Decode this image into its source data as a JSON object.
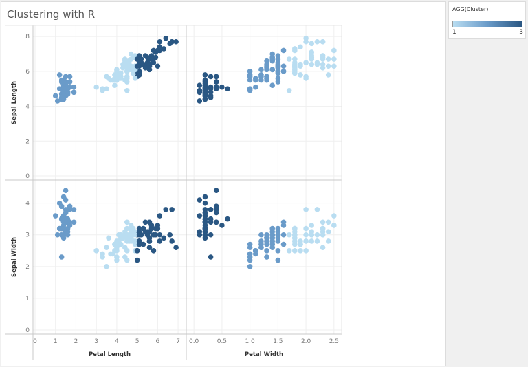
{
  "title": "Clustering with R",
  "legend": {
    "title": "AGG(Cluster)",
    "min_label": "1",
    "max_label": "3",
    "color_low": "#b9ddf1",
    "color_mid": "#6a9bc9",
    "color_high": "#2a5783"
  },
  "chart_data": {
    "type": "scatter",
    "layout": "2x2 scatter matrix",
    "grid": true,
    "color_field": "AGG(Cluster)",
    "legend_position": "top-right",
    "rows": [
      {
        "label": "Sepal Length",
        "ylim": [
          0,
          8.4
        ],
        "ticks": [
          "0",
          "2",
          "4",
          "6",
          "8"
        ]
      },
      {
        "label": "Sepal Width",
        "ylim": [
          0,
          4.6
        ],
        "ticks": [
          "0",
          "1",
          "2",
          "3",
          "4"
        ]
      }
    ],
    "columns": [
      {
        "label": "Petal Length",
        "xlim": [
          0,
          7.3
        ],
        "ticks": [
          "0",
          "1",
          "2",
          "3",
          "4",
          "5",
          "6",
          "7"
        ]
      },
      {
        "label": "Petal Width",
        "xlim": [
          -0.1,
          2.6
        ],
        "ticks": [
          "0.0",
          "0.5",
          "1.0",
          "1.5",
          "2.0",
          "2.5"
        ]
      }
    ],
    "point_fields": [
      "sepal_length",
      "sepal_width",
      "petal_length",
      "petal_width",
      "cluster_in_petal_length_column",
      "cluster_in_petal_width_column"
    ],
    "points": [
      [
        5.1,
        3.5,
        1.4,
        0.2,
        2,
        3
      ],
      [
        4.9,
        3.0,
        1.4,
        0.2,
        2,
        3
      ],
      [
        4.7,
        3.2,
        1.3,
        0.2,
        2,
        3
      ],
      [
        4.6,
        3.1,
        1.5,
        0.2,
        2,
        3
      ],
      [
        5.0,
        3.6,
        1.4,
        0.2,
        2,
        3
      ],
      [
        5.4,
        3.9,
        1.7,
        0.4,
        2,
        3
      ],
      [
        4.6,
        3.4,
        1.4,
        0.3,
        2,
        3
      ],
      [
        5.0,
        3.4,
        1.5,
        0.2,
        2,
        3
      ],
      [
        4.4,
        2.9,
        1.4,
        0.2,
        2,
        3
      ],
      [
        4.9,
        3.1,
        1.5,
        0.1,
        2,
        3
      ],
      [
        5.4,
        3.7,
        1.5,
        0.2,
        2,
        3
      ],
      [
        4.8,
        3.4,
        1.6,
        0.2,
        2,
        3
      ],
      [
        4.8,
        3.0,
        1.4,
        0.1,
        2,
        3
      ],
      [
        4.3,
        3.0,
        1.1,
        0.1,
        2,
        3
      ],
      [
        5.8,
        4.0,
        1.2,
        0.2,
        2,
        3
      ],
      [
        5.7,
        4.4,
        1.5,
        0.4,
        2,
        3
      ],
      [
        5.4,
        3.9,
        1.3,
        0.4,
        2,
        3
      ],
      [
        5.1,
        3.5,
        1.4,
        0.3,
        2,
        3
      ],
      [
        5.7,
        3.8,
        1.7,
        0.3,
        2,
        3
      ],
      [
        5.1,
        3.8,
        1.5,
        0.3,
        2,
        3
      ],
      [
        5.4,
        3.4,
        1.7,
        0.2,
        2,
        3
      ],
      [
        5.1,
        3.7,
        1.5,
        0.4,
        2,
        3
      ],
      [
        4.6,
        3.6,
        1.0,
        0.2,
        2,
        3
      ],
      [
        5.1,
        3.3,
        1.7,
        0.5,
        2,
        3
      ],
      [
        4.8,
        3.4,
        1.9,
        0.2,
        2,
        3
      ],
      [
        5.0,
        3.0,
        1.6,
        0.2,
        2,
        3
      ],
      [
        5.0,
        3.4,
        1.6,
        0.4,
        2,
        3
      ],
      [
        5.2,
        3.5,
        1.5,
        0.2,
        2,
        3
      ],
      [
        5.2,
        3.4,
        1.4,
        0.2,
        2,
        3
      ],
      [
        4.7,
        3.2,
        1.6,
        0.2,
        2,
        3
      ],
      [
        4.8,
        3.1,
        1.6,
        0.2,
        2,
        3
      ],
      [
        5.4,
        3.4,
        1.5,
        0.4,
        2,
        3
      ],
      [
        5.2,
        4.1,
        1.5,
        0.1,
        2,
        3
      ],
      [
        5.5,
        4.2,
        1.4,
        0.2,
        2,
        3
      ],
      [
        4.9,
        3.1,
        1.5,
        0.2,
        2,
        3
      ],
      [
        5.0,
        3.2,
        1.2,
        0.2,
        2,
        3
      ],
      [
        5.5,
        3.5,
        1.3,
        0.2,
        2,
        3
      ],
      [
        4.9,
        3.6,
        1.4,
        0.1,
        2,
        3
      ],
      [
        4.4,
        3.0,
        1.3,
        0.2,
        2,
        3
      ],
      [
        5.1,
        3.4,
        1.5,
        0.2,
        2,
        3
      ],
      [
        5.0,
        3.5,
        1.3,
        0.3,
        2,
        3
      ],
      [
        4.5,
        2.3,
        1.3,
        0.3,
        2,
        3
      ],
      [
        4.4,
        3.2,
        1.3,
        0.2,
        2,
        3
      ],
      [
        5.0,
        3.5,
        1.6,
        0.6,
        2,
        3
      ],
      [
        5.1,
        3.8,
        1.9,
        0.4,
        2,
        3
      ],
      [
        4.8,
        3.0,
        1.4,
        0.3,
        2,
        3
      ],
      [
        5.1,
        3.8,
        1.6,
        0.2,
        2,
        3
      ],
      [
        4.6,
        3.2,
        1.4,
        0.2,
        2,
        3
      ],
      [
        5.3,
        3.7,
        1.5,
        0.2,
        2,
        3
      ],
      [
        5.0,
        3.3,
        1.4,
        0.2,
        2,
        3
      ],
      [
        7.0,
        3.2,
        4.7,
        1.4,
        1,
        2
      ],
      [
        6.4,
        3.2,
        4.5,
        1.5,
        1,
        2
      ],
      [
        6.9,
        3.1,
        4.9,
        1.5,
        1,
        2
      ],
      [
        5.5,
        2.3,
        4.0,
        1.3,
        1,
        2
      ],
      [
        6.5,
        2.8,
        4.6,
        1.5,
        1,
        2
      ],
      [
        5.7,
        2.8,
        4.5,
        1.3,
        1,
        2
      ],
      [
        6.3,
        3.3,
        4.7,
        1.6,
        1,
        2
      ],
      [
        4.9,
        2.4,
        3.3,
        1.0,
        1,
        2
      ],
      [
        6.6,
        2.9,
        4.6,
        1.3,
        1,
        2
      ],
      [
        5.2,
        2.7,
        3.9,
        1.4,
        1,
        2
      ],
      [
        5.0,
        2.0,
        3.5,
        1.0,
        1,
        2
      ],
      [
        5.9,
        3.0,
        4.2,
        1.5,
        1,
        2
      ],
      [
        6.0,
        2.2,
        4.0,
        1.0,
        1,
        2
      ],
      [
        6.1,
        2.9,
        4.7,
        1.4,
        1,
        2
      ],
      [
        5.6,
        2.9,
        3.6,
        1.3,
        1,
        2
      ],
      [
        6.7,
        3.1,
        4.4,
        1.4,
        1,
        2
      ],
      [
        5.6,
        3.0,
        4.5,
        1.5,
        1,
        2
      ],
      [
        5.8,
        2.7,
        4.1,
        1.0,
        1,
        2
      ],
      [
        6.2,
        2.2,
        4.5,
        1.5,
        1,
        2
      ],
      [
        5.6,
        2.5,
        3.9,
        1.1,
        1,
        2
      ],
      [
        5.9,
        3.2,
        4.8,
        1.8,
        1,
        1
      ],
      [
        6.1,
        2.8,
        4.0,
        1.3,
        1,
        2
      ],
      [
        6.3,
        2.5,
        4.9,
        1.5,
        1,
        2
      ],
      [
        6.1,
        2.8,
        4.7,
        1.2,
        1,
        2
      ],
      [
        6.4,
        2.9,
        4.3,
        1.3,
        1,
        2
      ],
      [
        6.6,
        3.0,
        4.4,
        1.4,
        1,
        2
      ],
      [
        6.8,
        2.8,
        4.8,
        1.4,
        1,
        2
      ],
      [
        6.7,
        3.0,
        5.0,
        1.7,
        3,
        1
      ],
      [
        6.0,
        2.9,
        4.5,
        1.5,
        1,
        2
      ],
      [
        5.7,
        2.6,
        3.5,
        1.0,
        1,
        2
      ],
      [
        5.5,
        2.4,
        3.8,
        1.1,
        1,
        2
      ],
      [
        5.5,
        2.4,
        3.7,
        1.0,
        1,
        2
      ],
      [
        5.8,
        2.7,
        3.9,
        1.2,
        1,
        2
      ],
      [
        6.0,
        2.7,
        5.1,
        1.6,
        3,
        2
      ],
      [
        5.4,
        3.0,
        4.5,
        1.5,
        1,
        2
      ],
      [
        6.0,
        3.4,
        4.5,
        1.6,
        1,
        2
      ],
      [
        6.7,
        3.1,
        4.7,
        1.5,
        1,
        2
      ],
      [
        6.3,
        2.3,
        4.4,
        1.3,
        1,
        2
      ],
      [
        5.6,
        3.0,
        4.1,
        1.3,
        1,
        2
      ],
      [
        5.5,
        2.5,
        4.0,
        1.3,
        1,
        2
      ],
      [
        5.5,
        2.6,
        4.4,
        1.2,
        1,
        2
      ],
      [
        6.1,
        3.0,
        4.6,
        1.4,
        1,
        2
      ],
      [
        5.8,
        2.6,
        4.0,
        1.2,
        1,
        2
      ],
      [
        5.0,
        2.3,
        3.3,
        1.0,
        1,
        2
      ],
      [
        5.6,
        2.7,
        4.2,
        1.3,
        1,
        2
      ],
      [
        5.7,
        3.0,
        4.2,
        1.2,
        1,
        2
      ],
      [
        5.7,
        2.9,
        4.2,
        1.3,
        1,
        2
      ],
      [
        6.2,
        2.9,
        4.3,
        1.3,
        1,
        2
      ],
      [
        5.1,
        2.5,
        3.0,
        1.1,
        1,
        2
      ],
      [
        5.7,
        2.8,
        4.1,
        1.3,
        1,
        2
      ],
      [
        6.3,
        3.3,
        6.0,
        2.5,
        3,
        1
      ],
      [
        5.8,
        2.7,
        5.1,
        1.9,
        3,
        1
      ],
      [
        7.1,
        3.0,
        5.9,
        2.1,
        3,
        1
      ],
      [
        6.3,
        2.9,
        5.6,
        1.8,
        3,
        1
      ],
      [
        6.5,
        3.0,
        5.8,
        2.2,
        3,
        1
      ],
      [
        7.6,
        3.0,
        6.6,
        2.1,
        3,
        1
      ],
      [
        4.9,
        2.5,
        4.5,
        1.7,
        1,
        1
      ],
      [
        7.3,
        2.9,
        6.3,
        1.8,
        3,
        1
      ],
      [
        6.7,
        2.5,
        5.8,
        1.8,
        3,
        1
      ],
      [
        7.2,
        3.6,
        6.1,
        2.5,
        3,
        1
      ],
      [
        6.5,
        3.2,
        5.1,
        2.0,
        3,
        1
      ],
      [
        6.4,
        2.7,
        5.3,
        1.9,
        3,
        1
      ],
      [
        6.8,
        3.0,
        5.5,
        2.1,
        3,
        1
      ],
      [
        5.7,
        2.5,
        5.0,
        2.0,
        3,
        1
      ],
      [
        5.8,
        2.8,
        5.1,
        2.4,
        3,
        1
      ],
      [
        6.4,
        3.2,
        5.3,
        2.3,
        3,
        1
      ],
      [
        6.5,
        3.0,
        5.5,
        1.8,
        3,
        1
      ],
      [
        7.7,
        3.8,
        6.7,
        2.2,
        3,
        1
      ],
      [
        7.7,
        2.6,
        6.9,
        2.3,
        3,
        1
      ],
      [
        6.0,
        2.2,
        5.0,
        1.5,
        3,
        2
      ],
      [
        6.9,
        3.2,
        5.7,
        2.3,
        3,
        1
      ],
      [
        5.6,
        2.8,
        4.9,
        2.0,
        1,
        1
      ],
      [
        7.7,
        2.8,
        6.7,
        2.0,
        3,
        1
      ],
      [
        6.3,
        2.7,
        4.9,
        1.8,
        1,
        1
      ],
      [
        6.7,
        3.3,
        5.7,
        2.1,
        3,
        1
      ],
      [
        7.2,
        3.2,
        6.0,
        1.8,
        3,
        1
      ],
      [
        6.2,
        2.8,
        4.8,
        1.8,
        1,
        1
      ],
      [
        6.1,
        3.0,
        4.9,
        1.8,
        1,
        1
      ],
      [
        6.4,
        2.8,
        5.6,
        2.1,
        3,
        1
      ],
      [
        7.2,
        3.0,
        5.8,
        1.6,
        3,
        2
      ],
      [
        7.4,
        2.8,
        6.1,
        1.9,
        3,
        1
      ],
      [
        7.9,
        3.8,
        6.4,
        2.0,
        3,
        1
      ],
      [
        6.4,
        2.8,
        5.6,
        2.2,
        3,
        1
      ],
      [
        6.3,
        2.8,
        5.1,
        1.5,
        3,
        2
      ],
      [
        6.1,
        2.6,
        5.6,
        1.4,
        3,
        2
      ],
      [
        7.7,
        3.0,
        6.1,
        2.3,
        3,
        1
      ],
      [
        6.3,
        3.4,
        5.6,
        2.4,
        3,
        1
      ],
      [
        6.4,
        3.1,
        5.5,
        1.8,
        3,
        1
      ],
      [
        6.0,
        3.0,
        4.8,
        1.8,
        1,
        1
      ],
      [
        6.9,
        3.1,
        5.4,
        2.1,
        3,
        1
      ],
      [
        6.7,
        3.1,
        5.6,
        2.4,
        3,
        1
      ],
      [
        6.9,
        3.1,
        5.1,
        2.3,
        3,
        1
      ],
      [
        5.8,
        2.7,
        5.1,
        1.9,
        3,
        1
      ],
      [
        6.8,
        3.2,
        5.9,
        2.3,
        3,
        1
      ],
      [
        6.7,
        3.3,
        5.7,
        2.5,
        3,
        1
      ],
      [
        6.7,
        3.0,
        5.2,
        2.3,
        3,
        1
      ],
      [
        6.3,
        2.5,
        5.0,
        1.9,
        3,
        1
      ],
      [
        6.5,
        3.0,
        5.2,
        2.0,
        3,
        1
      ],
      [
        6.2,
        3.4,
        5.4,
        2.3,
        3,
        1
      ],
      [
        5.9,
        3.0,
        5.1,
        1.8,
        3,
        1
      ]
    ]
  }
}
